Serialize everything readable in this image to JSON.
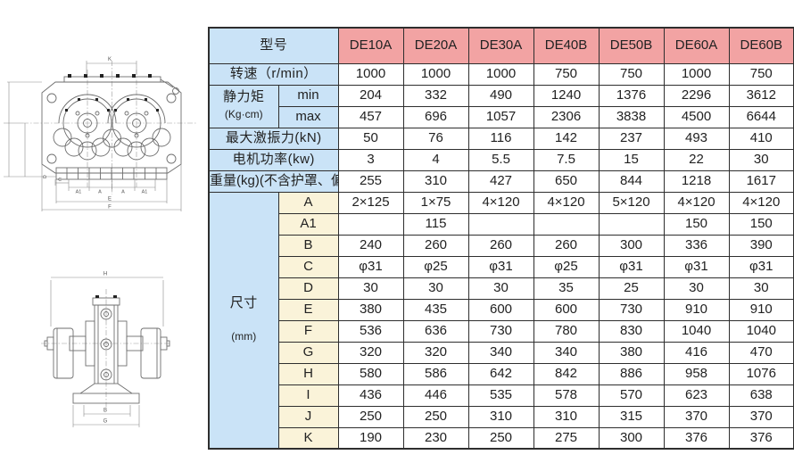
{
  "colors": {
    "header_pink": "#f2a3a3",
    "label_blue": "#cae3f7",
    "dim_cream": "#faf3d9",
    "border": "#2e2e2e"
  },
  "table": {
    "header": {
      "label": "型号",
      "models": [
        "DE10A",
        "DE20A",
        "DE30A",
        "DE40B",
        "DE50B",
        "DE60A",
        "DE60B"
      ]
    },
    "speed": {
      "label": "转速（r/min）",
      "values": [
        "1000",
        "1000",
        "1000",
        "750",
        "750",
        "1000",
        "750"
      ]
    },
    "static_moment": {
      "label": "静力矩",
      "unit": "(Kg·cm)",
      "min_label": "min",
      "max_label": "max",
      "min": [
        "204",
        "332",
        "490",
        "1240",
        "1376",
        "2296",
        "3612"
      ],
      "max": [
        "457",
        "696",
        "1057",
        "2306",
        "3838",
        "4500",
        "6644"
      ]
    },
    "max_force": {
      "label": "最大激振力(kN)",
      "values": [
        "50",
        "76",
        "116",
        "142",
        "237",
        "493",
        "410"
      ]
    },
    "motor_power": {
      "label": "电机功率(kw)",
      "values": [
        "3",
        "4",
        "5.5",
        "7.5",
        "15",
        "22",
        "30"
      ]
    },
    "weight": {
      "label": "重量(kg)(不含护罩、偏心块)",
      "values": [
        "255",
        "310",
        "427",
        "650",
        "844",
        "1218",
        "1617"
      ]
    },
    "dimensions": {
      "label": "尺寸",
      "unit": "(mm)",
      "rows": [
        {
          "name": "A",
          "values": [
            "2×125",
            "1×75",
            "4×120",
            "4×120",
            "5×120",
            "4×120",
            "4×120"
          ]
        },
        {
          "name": "A1",
          "values": [
            "",
            "115",
            "",
            "",
            "",
            "150",
            "150"
          ]
        },
        {
          "name": "B",
          "values": [
            "240",
            "260",
            "260",
            "260",
            "300",
            "336",
            "390"
          ]
        },
        {
          "name": "C",
          "values": [
            "φ31",
            "φ25",
            "φ31",
            "φ25",
            "φ31",
            "φ31",
            "φ31"
          ]
        },
        {
          "name": "D",
          "values": [
            "30",
            "30",
            "30",
            "35",
            "25",
            "30",
            "30"
          ]
        },
        {
          "name": "E",
          "values": [
            "380",
            "435",
            "600",
            "600",
            "730",
            "910",
            "910"
          ]
        },
        {
          "name": "F",
          "values": [
            "536",
            "636",
            "730",
            "780",
            "830",
            "1040",
            "1040"
          ]
        },
        {
          "name": "G",
          "values": [
            "320",
            "320",
            "340",
            "340",
            "380",
            "416",
            "470"
          ]
        },
        {
          "name": "H",
          "values": [
            "580",
            "586",
            "642",
            "842",
            "886",
            "958",
            "1076"
          ]
        },
        {
          "name": "I",
          "values": [
            "436",
            "446",
            "535",
            "578",
            "570",
            "623",
            "638"
          ]
        },
        {
          "name": "J",
          "values": [
            "250",
            "250",
            "310",
            "310",
            "315",
            "370",
            "370"
          ]
        },
        {
          "name": "K",
          "values": [
            "190",
            "230",
            "250",
            "275",
            "300",
            "376",
            "376"
          ]
        }
      ]
    }
  },
  "drawings": {
    "top_view": {
      "labels": {
        "k": "K",
        "c": "C",
        "d": "D",
        "a1_left": "A1",
        "a_left": "A",
        "a_right": "A",
        "a1_right": "A1",
        "e": "E",
        "f": "F"
      }
    },
    "front_view": {
      "labels": {
        "h": "H",
        "b": "B",
        "g": "G"
      }
    }
  }
}
